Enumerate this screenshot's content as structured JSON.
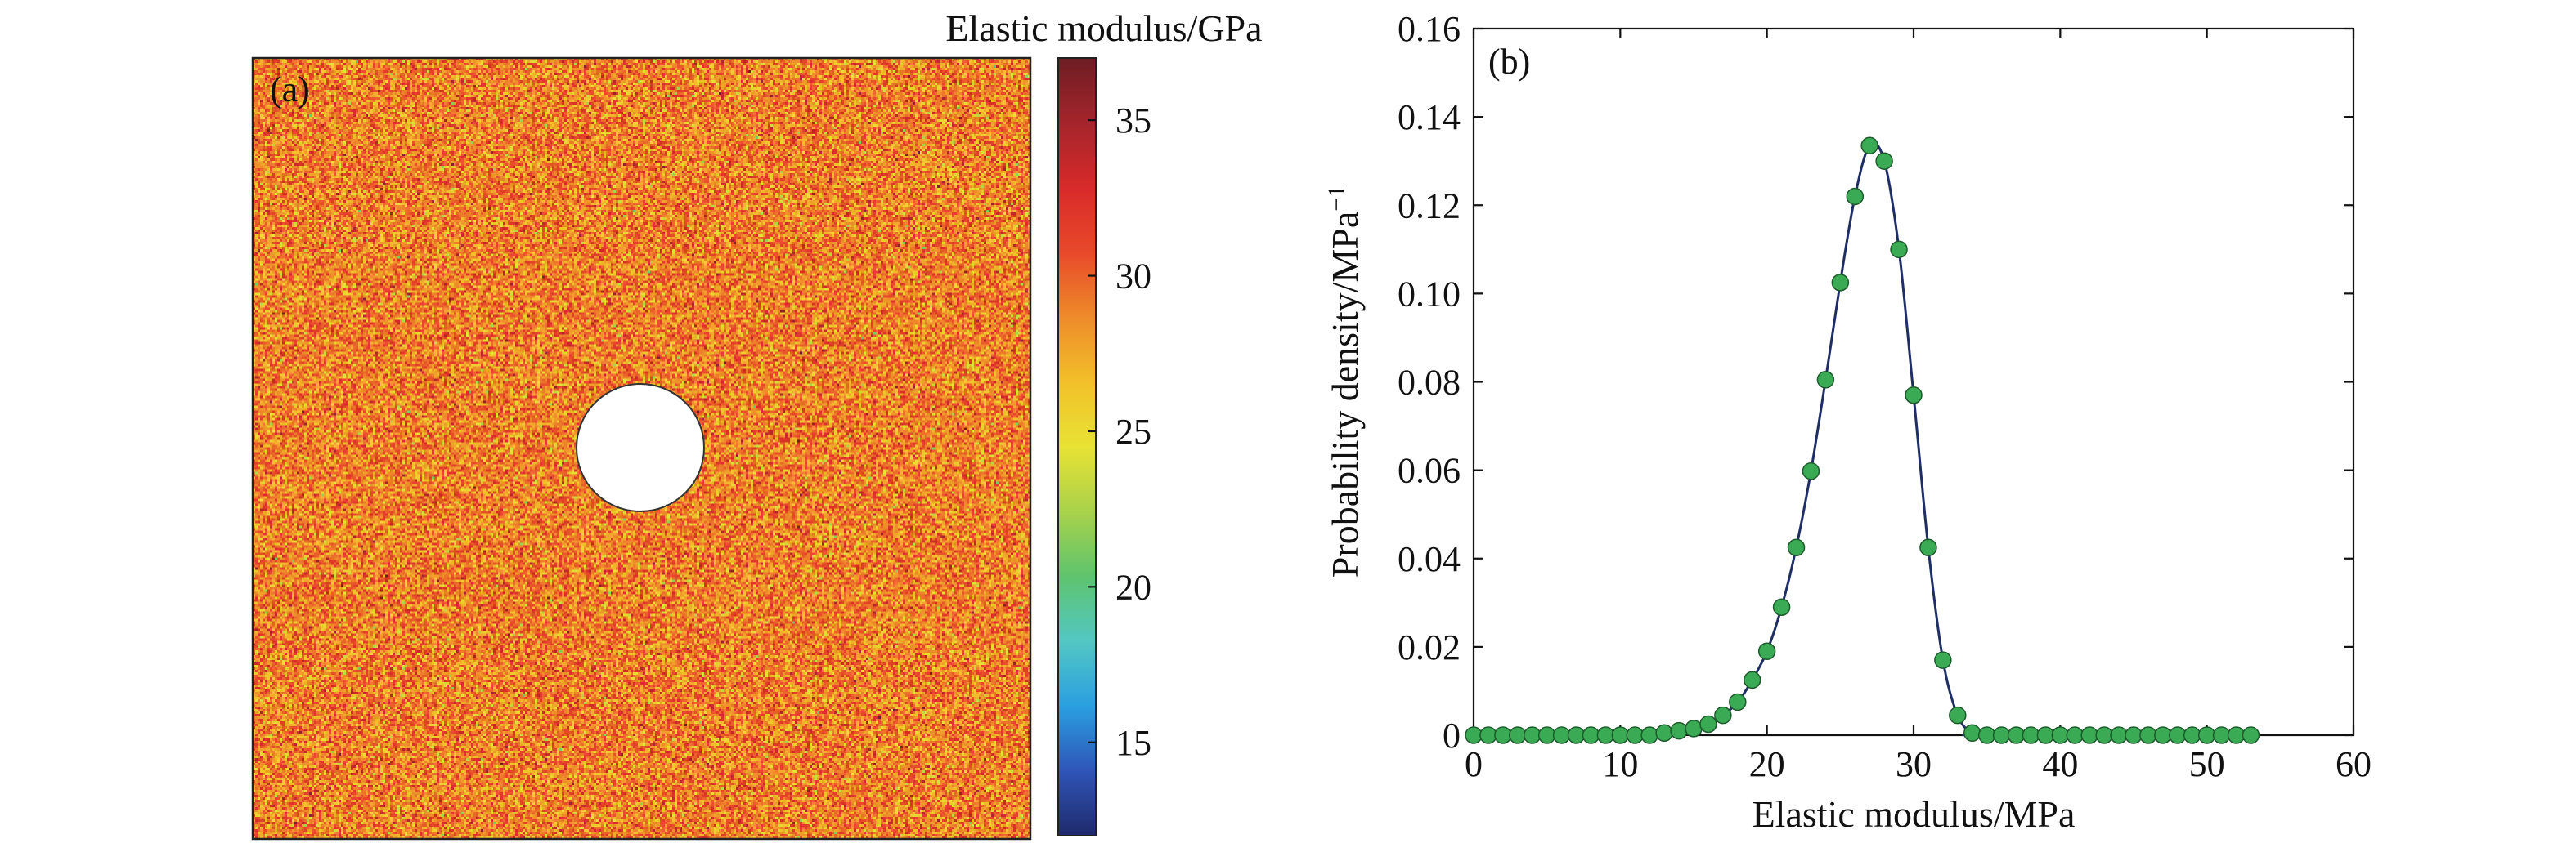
{
  "chart_data": [
    {
      "type": "heatmap",
      "panel_label": "(a)",
      "colorbar": {
        "title": "Elastic modulus/GPa",
        "range": [
          12,
          37
        ],
        "ticks": [
          15,
          20,
          25,
          30,
          35
        ],
        "colormap": [
          "#1f2a6b",
          "#2f55b8",
          "#2a9fe0",
          "#53c7c3",
          "#5ec46e",
          "#a9d24a",
          "#e8e234",
          "#f2c02a",
          "#ee8b2a",
          "#e8492a",
          "#d82a2a",
          "#a4252b",
          "#6e1d24"
        ]
      },
      "field": {
        "dominant_range": [
          26,
          33
        ],
        "hole": "circular"
      },
      "colors": {
        "hole": "#ffffff",
        "frame": "#222222"
      }
    },
    {
      "type": "line",
      "panel_label": "(b)",
      "xlabel": "Elastic modulus/MPa",
      "ylabel": "Probability density/MPa",
      "ylabel_sup": "−1",
      "xlim": [
        0,
        60
      ],
      "ylim": [
        0,
        0.16
      ],
      "xticks": [
        0,
        10,
        20,
        30,
        40,
        50,
        60
      ],
      "yticks": [
        0,
        0.02,
        0.04,
        0.06,
        0.08,
        0.1,
        0.12,
        0.14,
        0.16
      ],
      "ytick_labels": [
        "0",
        "0.02",
        "0.04",
        "0.06",
        "0.08",
        "0.10",
        "0.12",
        "0.14",
        "0.16"
      ],
      "series": [
        {
          "style": "markers",
          "color": "#3aaa55",
          "x": [
            0,
            1,
            2,
            3,
            4,
            5,
            6,
            7,
            8,
            9,
            10,
            11,
            12,
            13,
            14,
            15,
            16,
            17,
            18,
            19,
            20,
            21,
            22,
            23,
            24,
            25,
            26,
            27,
            28,
            29,
            30,
            31,
            32,
            33,
            34,
            35,
            36,
            37,
            38,
            39,
            40,
            41,
            42,
            43,
            44,
            45,
            46,
            47,
            48,
            49,
            50,
            51,
            52,
            53
          ],
          "y": [
            0,
            0,
            0,
            0,
            0,
            0,
            0,
            0,
            0,
            0,
            0,
            0,
            0,
            0.0005,
            0.001,
            0.0015,
            0.0025,
            0.0045,
            0.0075,
            0.0125,
            0.019,
            0.029,
            0.0425,
            0.0598,
            0.0805,
            0.1025,
            0.122,
            0.1335,
            0.13,
            0.11,
            0.077,
            0.0425,
            0.017,
            0.0045,
            0.0005,
            0,
            0,
            0,
            0,
            0,
            0,
            0,
            0,
            0,
            0,
            0,
            0,
            0,
            0,
            0,
            0,
            0,
            0,
            0
          ]
        },
        {
          "style": "line",
          "color": "#1f2f66",
          "x": [
            0,
            12,
            13,
            14,
            15,
            16,
            17,
            18,
            19,
            20,
            21,
            22,
            23,
            24,
            25,
            26,
            27,
            28,
            29,
            30,
            31,
            32,
            33,
            34,
            35,
            53
          ],
          "y": [
            0,
            0,
            0.0005,
            0.001,
            0.0015,
            0.0025,
            0.0045,
            0.0075,
            0.0125,
            0.019,
            0.029,
            0.0425,
            0.0598,
            0.0805,
            0.1025,
            0.122,
            0.1335,
            0.13,
            0.11,
            0.077,
            0.0425,
            0.017,
            0.0045,
            0.0005,
            0,
            0
          ]
        }
      ]
    }
  ]
}
